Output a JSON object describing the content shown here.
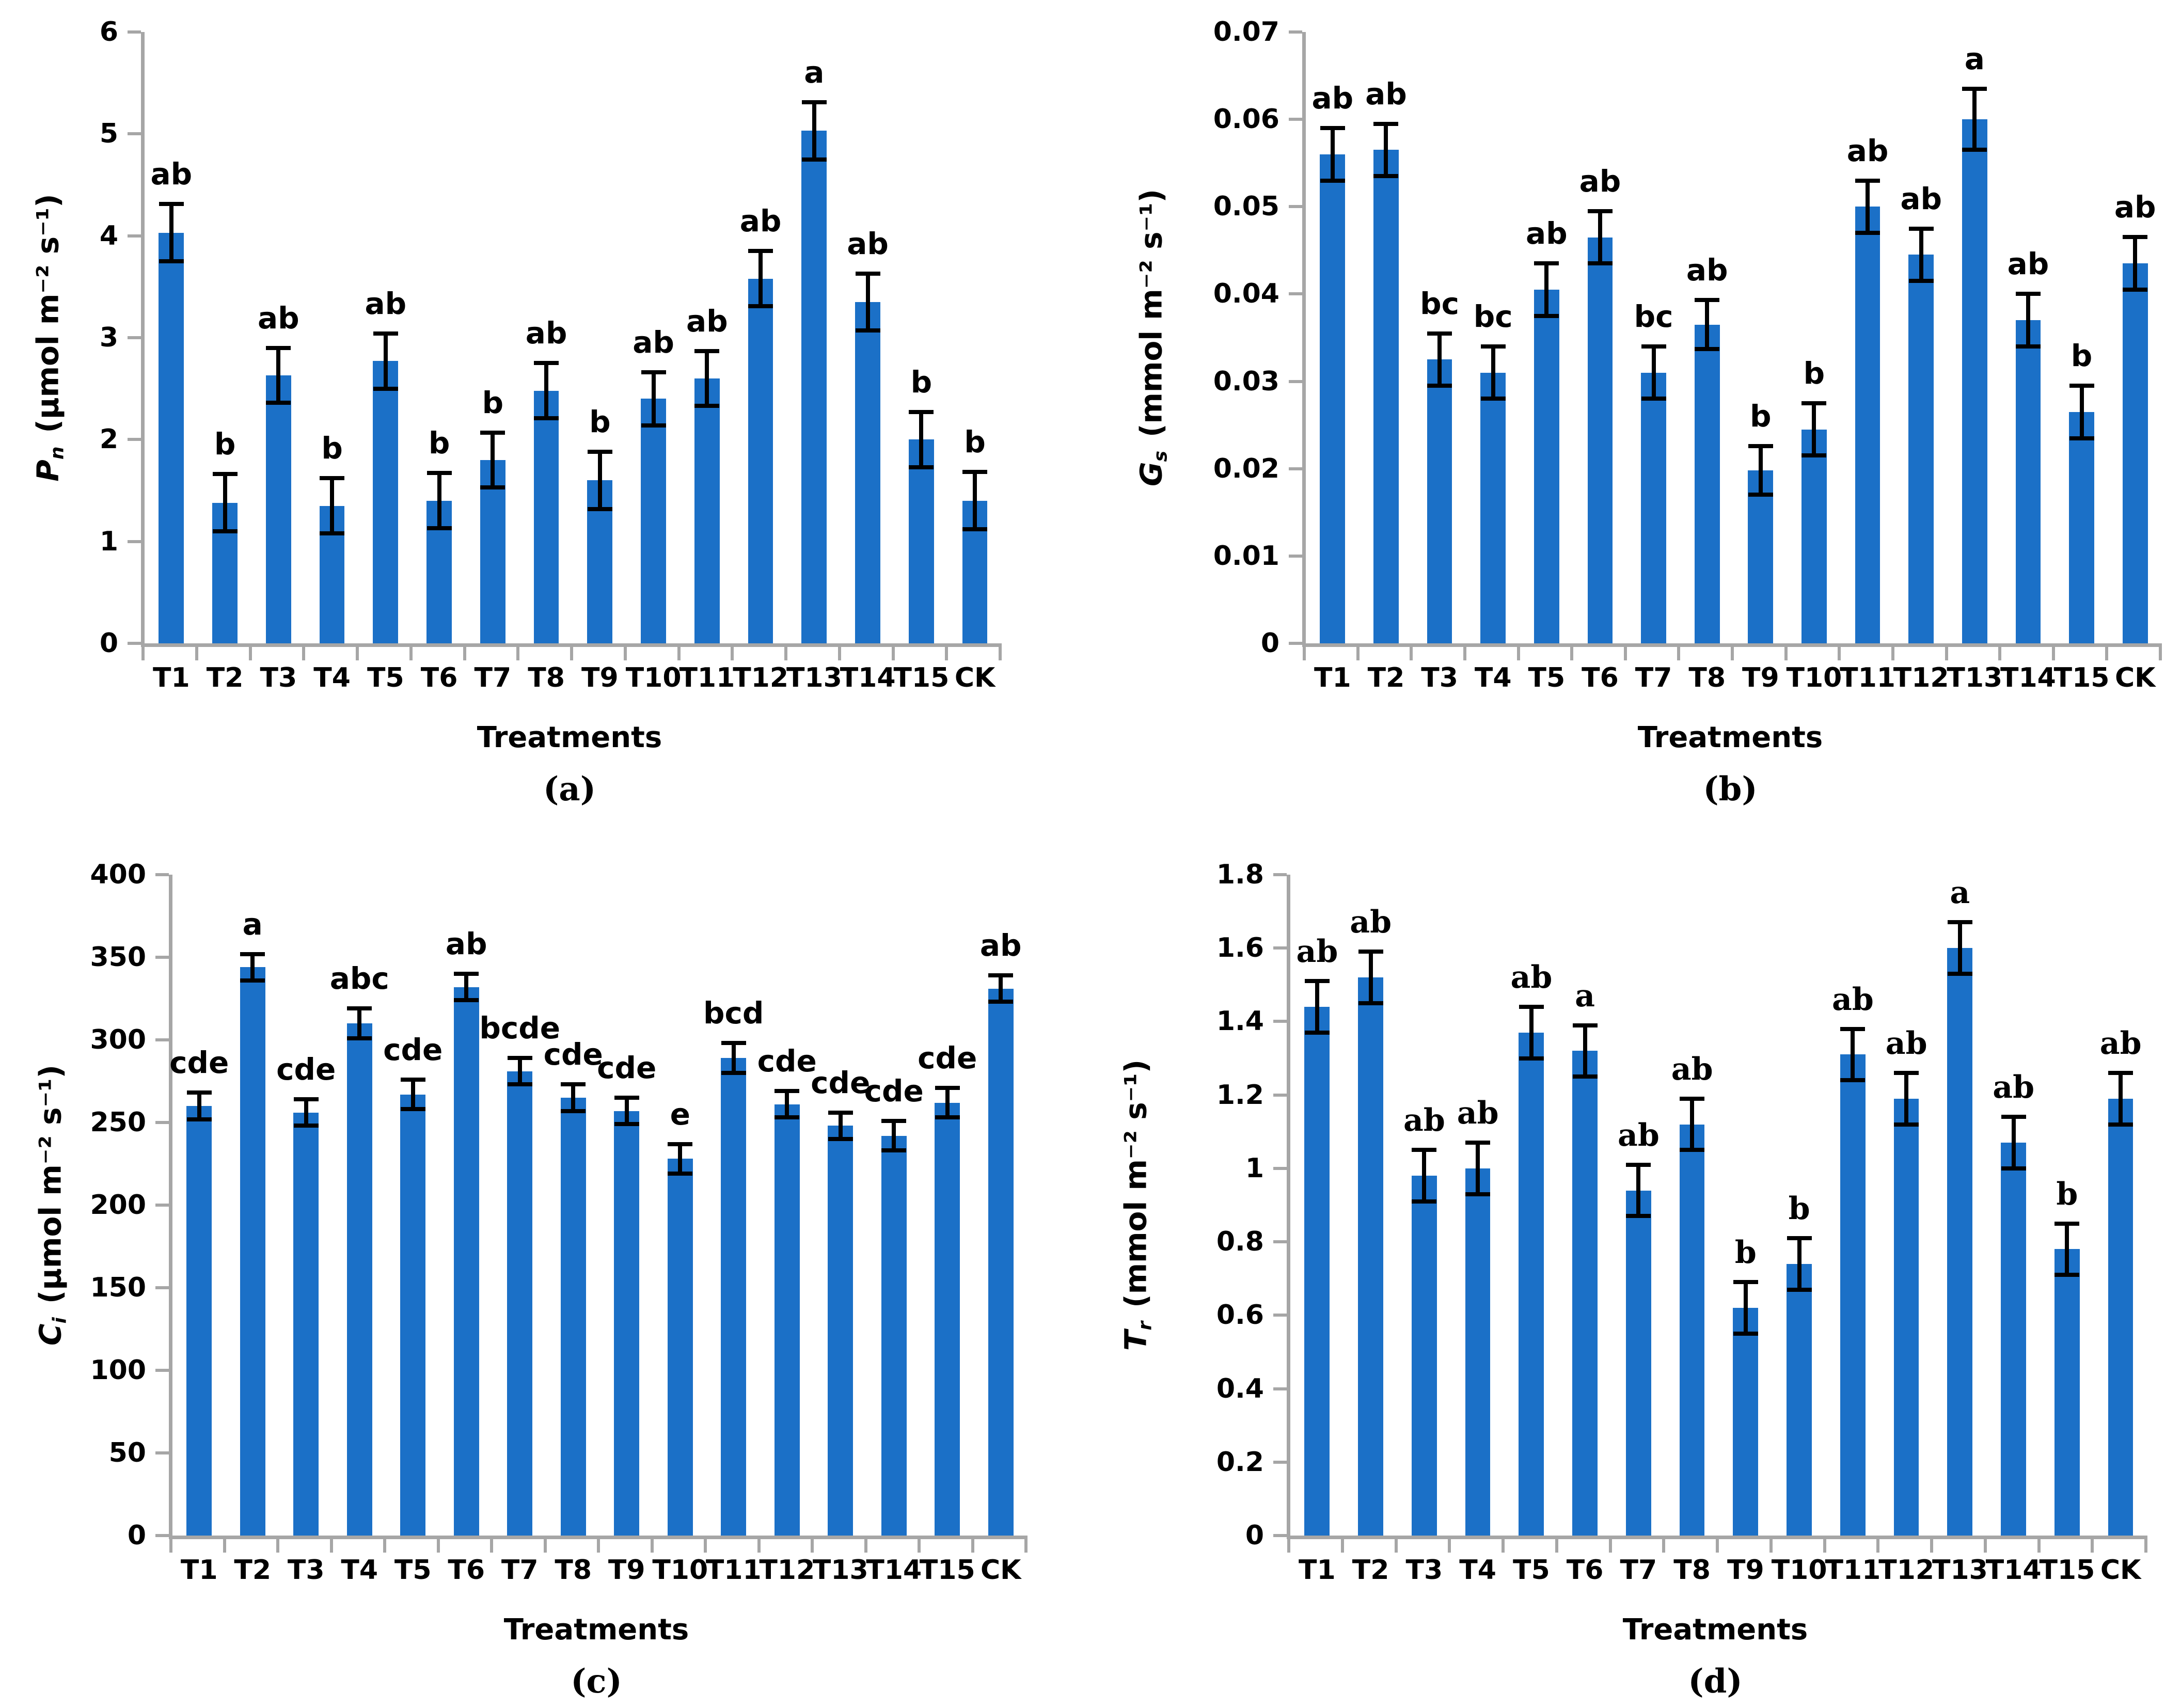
{
  "figure_style": {
    "bar_color": "#1B70C7",
    "axis_color": "#A6A6A6",
    "error_bar_color": "#000000",
    "text_color": "#000000",
    "background": "#FFFFFF"
  },
  "chart_data": [
    {
      "type": "bar",
      "panel_label": "(a)",
      "ylabel_symbol": "P",
      "ylabel_subscript": "n",
      "ylabel_units": "(μmol m⁻² s⁻¹)",
      "xlabel": "Treatments",
      "ylim": [
        0,
        6
      ],
      "ytick_step": 1,
      "grid": false,
      "legend": false,
      "categories": [
        "T1",
        "T2",
        "T3",
        "T4",
        "T5",
        "T6",
        "T7",
        "T8",
        "T9",
        "T10",
        "T11",
        "T12",
        "T13",
        "T14",
        "T15",
        "CK"
      ],
      "values": [
        4.03,
        1.38,
        2.63,
        1.35,
        2.77,
        1.4,
        1.8,
        2.48,
        1.6,
        2.4,
        2.6,
        3.58,
        5.03,
        3.35,
        2.0,
        1.4
      ],
      "errors": [
        0.28,
        0.28,
        0.27,
        0.27,
        0.27,
        0.27,
        0.27,
        0.27,
        0.28,
        0.26,
        0.27,
        0.27,
        0.28,
        0.28,
        0.27,
        0.28
      ],
      "sig_letters": [
        "ab",
        "b",
        "ab",
        "b",
        "ab",
        "b",
        "b",
        "ab",
        "b",
        "ab",
        "ab",
        "ab",
        "a",
        "ab",
        "b",
        "b"
      ]
    },
    {
      "type": "bar",
      "panel_label": "(b)",
      "ylabel_symbol": "G",
      "ylabel_subscript": "s",
      "ylabel_units": "(mmol m⁻² s⁻¹)",
      "xlabel": "Treatments",
      "ylim": [
        0,
        0.07
      ],
      "ytick_step": 0.01,
      "grid": false,
      "legend": false,
      "categories": [
        "T1",
        "T2",
        "T3",
        "T4",
        "T5",
        "T6",
        "T7",
        "T8",
        "T9",
        "T10",
        "T11",
        "T12",
        "T13",
        "T14",
        "T15",
        "CK"
      ],
      "values": [
        0.056,
        0.0565,
        0.0325,
        0.031,
        0.0405,
        0.0465,
        0.031,
        0.0365,
        0.0198,
        0.0245,
        0.05,
        0.0445,
        0.06,
        0.037,
        0.0265,
        0.0435
      ],
      "errors": [
        0.003,
        0.003,
        0.003,
        0.003,
        0.003,
        0.003,
        0.003,
        0.0028,
        0.0028,
        0.003,
        0.003,
        0.003,
        0.0035,
        0.003,
        0.003,
        0.003
      ],
      "sig_letters": [
        "ab",
        "ab",
        "bc",
        "bc",
        "ab",
        "ab",
        "bc",
        "ab",
        "b",
        "b",
        "ab",
        "ab",
        "a",
        "ab",
        "b",
        "ab"
      ]
    },
    {
      "type": "bar",
      "panel_label": "(c)",
      "ylabel_symbol": "C",
      "ylabel_subscript": "i",
      "ylabel_units": "(μmol m⁻² s⁻¹)",
      "xlabel": "Treatments",
      "ylim": [
        0,
        400
      ],
      "ytick_step": 50,
      "grid": false,
      "legend": false,
      "categories": [
        "T1",
        "T2",
        "T3",
        "T4",
        "T5",
        "T6",
        "T7",
        "T8",
        "T9",
        "T10",
        "T11",
        "T12",
        "T13",
        "T14",
        "T15",
        "CK"
      ],
      "values": [
        260,
        344,
        256,
        310,
        267,
        332,
        281,
        265,
        257,
        228,
        289,
        261,
        248,
        242,
        262,
        331
      ],
      "errors": [
        8,
        8,
        8,
        9,
        9,
        8,
        8,
        8,
        8,
        9,
        9,
        8,
        8,
        9,
        9,
        8
      ],
      "sig_letters": [
        "cde",
        "a",
        "cde",
        "abc",
        "cde",
        "ab",
        "bcde",
        "cde",
        "cde",
        "e",
        "bcd",
        "cde",
        "cde",
        "cde",
        "cde",
        "ab"
      ]
    },
    {
      "type": "bar",
      "panel_label": "(d)",
      "ylabel_symbol": "T",
      "ylabel_subscript": "r",
      "ylabel_units": "(mmol m⁻² s⁻¹)",
      "xlabel": "Treatments",
      "ylim": [
        0,
        1.8
      ],
      "ytick_step": 0.2,
      "grid": false,
      "legend": false,
      "categories": [
        "T1",
        "T2",
        "T3",
        "T4",
        "T5",
        "T6",
        "T7",
        "T8",
        "T9",
        "T10",
        "T11",
        "T12",
        "T13",
        "T14",
        "T15",
        "CK"
      ],
      "values": [
        1.44,
        1.52,
        0.98,
        1.0,
        1.37,
        1.32,
        0.94,
        1.12,
        0.62,
        0.74,
        1.31,
        1.19,
        1.6,
        1.07,
        0.78,
        1.19
      ],
      "errors": [
        0.07,
        0.07,
        0.07,
        0.07,
        0.07,
        0.07,
        0.07,
        0.07,
        0.07,
        0.07,
        0.07,
        0.07,
        0.07,
        0.07,
        0.07,
        0.07
      ],
      "sig_letters": [
        "ab",
        "ab",
        "ab",
        "ab",
        "ab",
        "a",
        "ab",
        "ab",
        "b",
        "b",
        "ab",
        "ab",
        "a",
        "ab",
        "b",
        "ab"
      ]
    }
  ]
}
